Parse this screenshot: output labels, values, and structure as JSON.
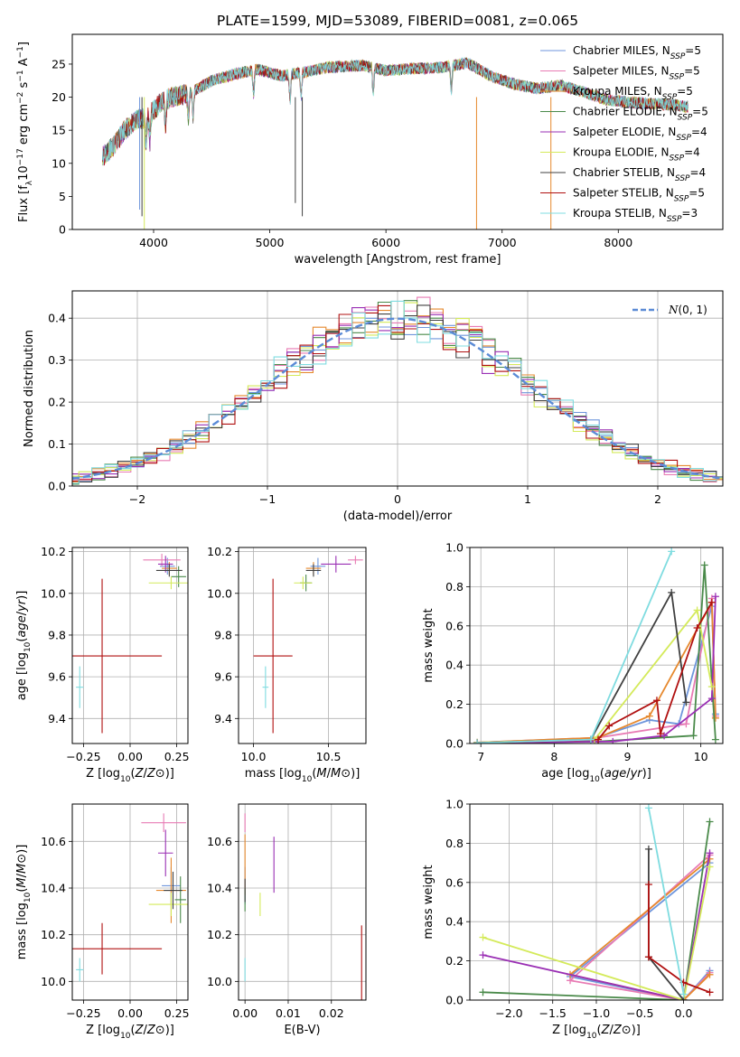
{
  "figure": {
    "title": "PLATE=1599, MJD=53089, FIBERID=0081, z=0.065"
  },
  "series": [
    {
      "name": "Chabrier MILES, N_SSP=5",
      "model": "Chabrier MILES",
      "nssp": "5",
      "color": "#6f96dc"
    },
    {
      "name": "Salpeter MILES, N_SSP=5",
      "model": "Salpeter MILES",
      "nssp": "5",
      "color": "#e87bb4"
    },
    {
      "name": "Kroupa MILES, N_SSP=5",
      "model": "Kroupa MILES",
      "nssp": "5",
      "color": "#e6892e"
    },
    {
      "name": "Chabrier ELODIE, N_SSP=5",
      "model": "Chabrier ELODIE",
      "nssp": "5",
      "color": "#4a8a4a"
    },
    {
      "name": "Salpeter ELODIE, N_SSP=4",
      "model": "Salpeter ELODIE",
      "nssp": "4",
      "color": "#9a2fb4"
    },
    {
      "name": "Kroupa ELODIE, N_SSP=4",
      "model": "Kroupa ELODIE",
      "nssp": "4",
      "color": "#d4ea5a"
    },
    {
      "name": "Chabrier STELIB, N_SSP=4",
      "model": "Chabrier STELIB",
      "nssp": "4",
      "color": "#404040"
    },
    {
      "name": "Salpeter STELIB, N_SSP=5",
      "model": "Salpeter STELIB",
      "nssp": "5",
      "color": "#b01010"
    },
    {
      "name": "Kroupa STELIB, N_SSP=3",
      "model": "Kroupa STELIB",
      "nssp": "3",
      "color": "#7fdce0"
    }
  ],
  "chart_data": [
    {
      "id": "spectrum",
      "type": "line",
      "xlabel": "wavelength [Angstrom, rest frame]",
      "ylabel": "Flux [f_λ 10^-17 erg cm^-2 s^-1 A^-1]",
      "xlim": [
        3300,
        8900
      ],
      "ylim": [
        0,
        29.5
      ],
      "xticks": [
        4000,
        5000,
        6000,
        7000,
        8000
      ],
      "yticks": [
        0,
        5,
        10,
        15,
        20,
        25
      ],
      "grid": false,
      "legend": "upper-right",
      "continuum": [
        [
          3560,
          11
        ],
        [
          3650,
          12.5
        ],
        [
          3750,
          15
        ],
        [
          3850,
          16.5
        ],
        [
          3950,
          17
        ],
        [
          4050,
          19
        ],
        [
          4150,
          20
        ],
        [
          4300,
          20.5
        ],
        [
          4500,
          22.5
        ],
        [
          4700,
          23.5
        ],
        [
          4900,
          24.2
        ],
        [
          5100,
          23.2
        ],
        [
          5300,
          23.8
        ],
        [
          5500,
          24.5
        ],
        [
          5800,
          24.8
        ],
        [
          6000,
          24
        ],
        [
          6200,
          24.3
        ],
        [
          6500,
          24.5
        ],
        [
          6700,
          25.2
        ],
        [
          6900,
          23.2
        ],
        [
          7100,
          22
        ],
        [
          7300,
          21.3
        ],
        [
          7500,
          21.8
        ],
        [
          7700,
          20.8
        ],
        [
          7900,
          19.6
        ],
        [
          8100,
          19.2
        ],
        [
          8300,
          19
        ],
        [
          8500,
          18.8
        ],
        [
          8600,
          18.5
        ]
      ]
    },
    {
      "id": "residuals",
      "type": "histogram",
      "xlabel": "(data-model)/error",
      "ylabel": "Normed distribution",
      "xlim": [
        -2.5,
        2.5
      ],
      "ylim": [
        0,
        0.465
      ],
      "xticks": [
        -2,
        -1,
        0,
        1,
        2
      ],
      "yticks": [
        0.0,
        0.1,
        0.2,
        0.3,
        0.4
      ],
      "grid": true,
      "legend": "upper-right",
      "reference": {
        "label": "N(0,1)",
        "mu": 0,
        "sigma": 1,
        "color": "#5b8bd6"
      }
    },
    {
      "id": "age_vs_Z",
      "type": "errorbar",
      "xlabel": "Z [log10(Z/Z⊙)]",
      "ylabel": "age [log10(age/yr)]",
      "xlim": [
        -0.31,
        0.31
      ],
      "ylim": [
        9.28,
        10.22
      ],
      "xticks": [
        -0.25,
        0.0,
        0.25
      ],
      "yticks": [
        9.4,
        9.6,
        9.8,
        10.0,
        10.2
      ],
      "grid": true,
      "points": [
        {
          "s": 0,
          "x": 0.2,
          "y": 10.13,
          "dx": 0.04,
          "dy": 0.04
        },
        {
          "s": 1,
          "x": 0.17,
          "y": 10.16,
          "dx": 0.1,
          "dy": 0.03
        },
        {
          "s": 2,
          "x": 0.21,
          "y": 10.12,
          "dx": 0.04,
          "dy": 0.03
        },
        {
          "s": 3,
          "x": 0.26,
          "y": 10.08,
          "dx": 0.04,
          "dy": 0.05
        },
        {
          "s": 4,
          "x": 0.19,
          "y": 10.14,
          "dx": 0.04,
          "dy": 0.04
        },
        {
          "s": 5,
          "x": 0.22,
          "y": 10.05,
          "dx": 0.12,
          "dy": 0.03
        },
        {
          "s": 6,
          "x": 0.21,
          "y": 10.11,
          "dx": 0.07,
          "dy": 0.03
        },
        {
          "s": 7,
          "x": -0.15,
          "y": 9.7,
          "dx": 0.32,
          "dy": 0.37
        },
        {
          "s": 8,
          "x": -0.27,
          "y": 9.55,
          "dx": 0.02,
          "dy": 0.1
        }
      ]
    },
    {
      "id": "age_vs_mass",
      "type": "errorbar",
      "xlabel": "mass [log10(M/M⊙)]",
      "ylabel": "",
      "xlim": [
        9.9,
        10.75
      ],
      "ylim": [
        9.28,
        10.22
      ],
      "xticks": [
        10.0,
        10.5
      ],
      "yticks": [
        9.4,
        9.6,
        9.8,
        10.0,
        10.2
      ],
      "grid": true,
      "points": [
        {
          "s": 0,
          "x": 10.43,
          "y": 10.13,
          "dx": 0.05,
          "dy": 0.04
        },
        {
          "s": 1,
          "x": 10.68,
          "y": 10.16,
          "dx": 0.05,
          "dy": 0.02
        },
        {
          "s": 2,
          "x": 10.4,
          "y": 10.12,
          "dx": 0.05,
          "dy": 0.03
        },
        {
          "s": 3,
          "x": 10.35,
          "y": 10.05,
          "dx": 0.04,
          "dy": 0.04
        },
        {
          "s": 4,
          "x": 10.55,
          "y": 10.14,
          "dx": 0.1,
          "dy": 0.04
        },
        {
          "s": 5,
          "x": 10.33,
          "y": 10.05,
          "dx": 0.06,
          "dy": 0.03
        },
        {
          "s": 6,
          "x": 10.4,
          "y": 10.11,
          "dx": 0.05,
          "dy": 0.03
        },
        {
          "s": 7,
          "x": 10.13,
          "y": 9.7,
          "dx": 0.13,
          "dy": 0.37
        },
        {
          "s": 8,
          "x": 10.08,
          "y": 9.55,
          "dx": 0.02,
          "dy": 0.1
        }
      ]
    },
    {
      "id": "weight_vs_age",
      "type": "line",
      "xlabel": "age [log10(age/yr)]",
      "ylabel": "mass weight",
      "xlim": [
        6.85,
        10.3
      ],
      "ylim": [
        0,
        1.0
      ],
      "xticks": [
        7,
        8,
        9,
        10
      ],
      "yticks": [
        0.0,
        0.2,
        0.4,
        0.6,
        0.8,
        1.0
      ],
      "grid": true,
      "lines": [
        {
          "s": 0,
          "pts": [
            [
              6.95,
              0.005
            ],
            [
              8.5,
              0.02
            ],
            [
              9.3,
              0.12
            ],
            [
              9.7,
              0.1
            ],
            [
              10.15,
              0.7
            ],
            [
              10.2,
              0.15
            ]
          ]
        },
        {
          "s": 1,
          "pts": [
            [
              6.95,
              0.005
            ],
            [
              8.6,
              0.03
            ],
            [
              9.8,
              0.1
            ],
            [
              10.15,
              0.74
            ],
            [
              10.2,
              0.14
            ]
          ]
        },
        {
          "s": 2,
          "pts": [
            [
              6.95,
              0.005
            ],
            [
              8.6,
              0.03
            ],
            [
              9.3,
              0.14
            ],
            [
              10.15,
              0.72
            ],
            [
              10.2,
              0.13
            ]
          ]
        },
        {
          "s": 3,
          "pts": [
            [
              6.95,
              0.003
            ],
            [
              8.6,
              0.01
            ],
            [
              9.9,
              0.04
            ],
            [
              10.05,
              0.91
            ],
            [
              10.2,
              0.02
            ]
          ]
        },
        {
          "s": 4,
          "pts": [
            [
              6.95,
              0.003
            ],
            [
              8.8,
              0.01
            ],
            [
              9.5,
              0.04
            ],
            [
              10.15,
              0.23
            ],
            [
              10.2,
              0.75
            ]
          ]
        },
        {
          "s": 5,
          "pts": [
            [
              6.95,
              0.005
            ],
            [
              8.55,
              0.02
            ],
            [
              9.95,
              0.68
            ],
            [
              10.15,
              0.29
            ]
          ]
        },
        {
          "s": 6,
          "pts": [
            [
              6.95,
              0.003
            ],
            [
              8.5,
              0.02
            ],
            [
              9.6,
              0.77
            ],
            [
              9.8,
              0.21
            ]
          ]
        },
        {
          "s": 7,
          "pts": [
            [
              6.95,
              0.003
            ],
            [
              8.6,
              0.02
            ],
            [
              8.75,
              0.09
            ],
            [
              9.4,
              0.22
            ],
            [
              9.45,
              0.05
            ],
            [
              9.95,
              0.59
            ],
            [
              10.15,
              0.72
            ]
          ]
        },
        {
          "s": 8,
          "pts": [
            [
              6.95,
              0.003
            ],
            [
              8.5,
              0.02
            ],
            [
              9.6,
              0.98
            ]
          ]
        }
      ]
    },
    {
      "id": "mass_vs_Z",
      "type": "errorbar",
      "xlabel": "Z [log10(Z/Z⊙)]",
      "ylabel": "mass [log10(M/M⊙)]",
      "xlim": [
        -0.31,
        0.31
      ],
      "ylim": [
        9.92,
        10.76
      ],
      "xticks": [
        -0.25,
        0.0,
        0.25
      ],
      "yticks": [
        10.0,
        10.2,
        10.4,
        10.6
      ],
      "grid": true,
      "points": [
        {
          "s": 0,
          "x": 0.22,
          "y": 10.41,
          "dx": 0.05,
          "dy": 0.08
        },
        {
          "s": 1,
          "x": 0.18,
          "y": 10.68,
          "dx": 0.12,
          "dy": 0.04
        },
        {
          "s": 2,
          "x": 0.22,
          "y": 10.39,
          "dx": 0.08,
          "dy": 0.14
        },
        {
          "s": 3,
          "x": 0.27,
          "y": 10.35,
          "dx": 0.03,
          "dy": 0.1
        },
        {
          "s": 4,
          "x": 0.19,
          "y": 10.55,
          "dx": 0.04,
          "dy": 0.1
        },
        {
          "s": 5,
          "x": 0.22,
          "y": 10.33,
          "dx": 0.12,
          "dy": 0.05
        },
        {
          "s": 6,
          "x": 0.23,
          "y": 10.39,
          "dx": 0.05,
          "dy": 0.08
        },
        {
          "s": 7,
          "x": -0.15,
          "y": 10.14,
          "dx": 0.32,
          "dy": 0.11
        },
        {
          "s": 8,
          "x": -0.27,
          "y": 10.05,
          "dx": 0.02,
          "dy": 0.05
        }
      ]
    },
    {
      "id": "mass_vs_ebv",
      "type": "errorbar",
      "xlabel": "E(B-V)",
      "ylabel": "",
      "xlim": [
        -0.0015,
        0.028
      ],
      "ylim": [
        9.92,
        10.76
      ],
      "xticks": [
        0.0,
        0.01,
        0.02
      ],
      "xticklabels": [
        "0.00",
        "0.01",
        "0.02"
      ],
      "yticks": [
        10.0,
        10.2,
        10.4,
        10.6
      ],
      "grid": true,
      "points": [
        {
          "s": 0,
          "x": 0.0,
          "y": 10.41,
          "dx": 0.0,
          "dy": 0.08
        },
        {
          "s": 1,
          "x": 0.0,
          "y": 10.68,
          "dx": 0.0,
          "dy": 0.04
        },
        {
          "s": 2,
          "x": 0.0,
          "y": 10.5,
          "dx": 0.0,
          "dy": 0.13
        },
        {
          "s": 3,
          "x": 0.0,
          "y": 10.35,
          "dx": 0.0,
          "dy": 0.05
        },
        {
          "s": 4,
          "x": 0.0067,
          "y": 10.5,
          "dx": 0.0,
          "dy": 0.12
        },
        {
          "s": 5,
          "x": 0.0035,
          "y": 10.33,
          "dx": 0.0,
          "dy": 0.05
        },
        {
          "s": 6,
          "x": 0.0,
          "y": 10.39,
          "dx": 0.0,
          "dy": 0.05
        },
        {
          "s": 7,
          "x": 0.027,
          "y": 10.08,
          "dx": 0.0,
          "dy": 0.16
        },
        {
          "s": 8,
          "x": 0.0,
          "y": 10.05,
          "dx": 0.0,
          "dy": 0.05
        }
      ]
    },
    {
      "id": "weight_vs_Z",
      "type": "line",
      "xlabel": "Z [log10(Z/Z⊙)]",
      "ylabel": "mass weight",
      "xlim": [
        -2.45,
        0.45
      ],
      "ylim": [
        0,
        1.0
      ],
      "xticks": [
        -2.0,
        -1.5,
        -1.0,
        -0.5,
        0.0
      ],
      "yticks": [
        0.0,
        0.2,
        0.4,
        0.6,
        0.8,
        1.0
      ],
      "grid": true,
      "lines": [
        {
          "s": 0,
          "pts": [
            [
              0.3,
              0.7
            ],
            [
              -1.3,
              0.12
            ],
            [
              0.0,
              0.0
            ],
            [
              0.3,
              0.15
            ]
          ]
        },
        {
          "s": 1,
          "pts": [
            [
              0.3,
              0.74
            ],
            [
              -1.3,
              0.1
            ],
            [
              0.0,
              0.0
            ],
            [
              0.3,
              0.14
            ]
          ]
        },
        {
          "s": 2,
          "pts": [
            [
              0.3,
              0.72
            ],
            [
              -1.3,
              0.13
            ],
            [
              0.0,
              0.0
            ],
            [
              0.3,
              0.13
            ]
          ]
        },
        {
          "s": 3,
          "pts": [
            [
              0.3,
              0.91
            ],
            [
              0.0,
              0.0
            ],
            [
              -2.3,
              0.04
            ]
          ]
        },
        {
          "s": 4,
          "pts": [
            [
              0.3,
              0.75
            ],
            [
              0.0,
              0.0
            ],
            [
              -2.3,
              0.23
            ]
          ]
        },
        {
          "s": 5,
          "pts": [
            [
              0.3,
              0.68
            ],
            [
              0.0,
              0.0
            ],
            [
              -2.3,
              0.32
            ]
          ]
        },
        {
          "s": 6,
          "pts": [
            [
              -0.4,
              0.77
            ],
            [
              -0.4,
              0.22
            ],
            [
              0.0,
              0.0
            ]
          ]
        },
        {
          "s": 7,
          "pts": [
            [
              -0.4,
              0.59
            ],
            [
              -0.4,
              0.22
            ],
            [
              0.0,
              0.09
            ],
            [
              0.3,
              0.04
            ]
          ]
        },
        {
          "s": 8,
          "pts": [
            [
              -0.4,
              0.98
            ],
            [
              0.0,
              0.03
            ]
          ]
        }
      ]
    }
  ]
}
